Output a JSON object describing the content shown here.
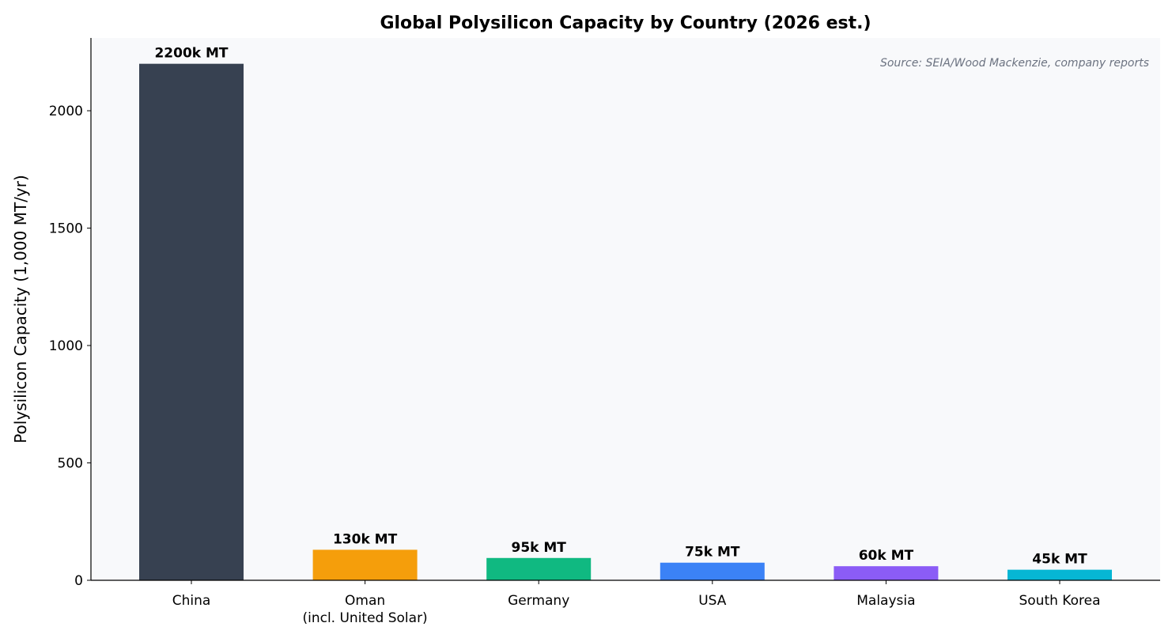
{
  "chart_data": {
    "type": "bar",
    "title": "Global Polysilicon Capacity by Country (2026 est.)",
    "xlabel": "",
    "ylabel": "Polysilicon Capacity (1,000 MT/yr)",
    "ylim": [
      0,
      2310
    ],
    "yticks": [
      0,
      500,
      1000,
      1500,
      2000
    ],
    "grid": false,
    "annotation": "Source: SEIA/Wood Mackenzie, company reports",
    "categories": [
      "China",
      "Oman\n(incl. United Solar)",
      "Germany",
      "USA",
      "Malaysia",
      "South Korea"
    ],
    "values": [
      2200,
      130,
      95,
      75,
      60,
      45
    ],
    "data_labels": [
      "2200k MT",
      "130k MT",
      "95k MT",
      "75k MT",
      "60k MT",
      "45k MT"
    ],
    "colors": [
      "#374151",
      "#f59e0b",
      "#10b981",
      "#3b82f6",
      "#8b5cf6",
      "#06b6d4"
    ],
    "plot_background": "#f8f9fb"
  }
}
